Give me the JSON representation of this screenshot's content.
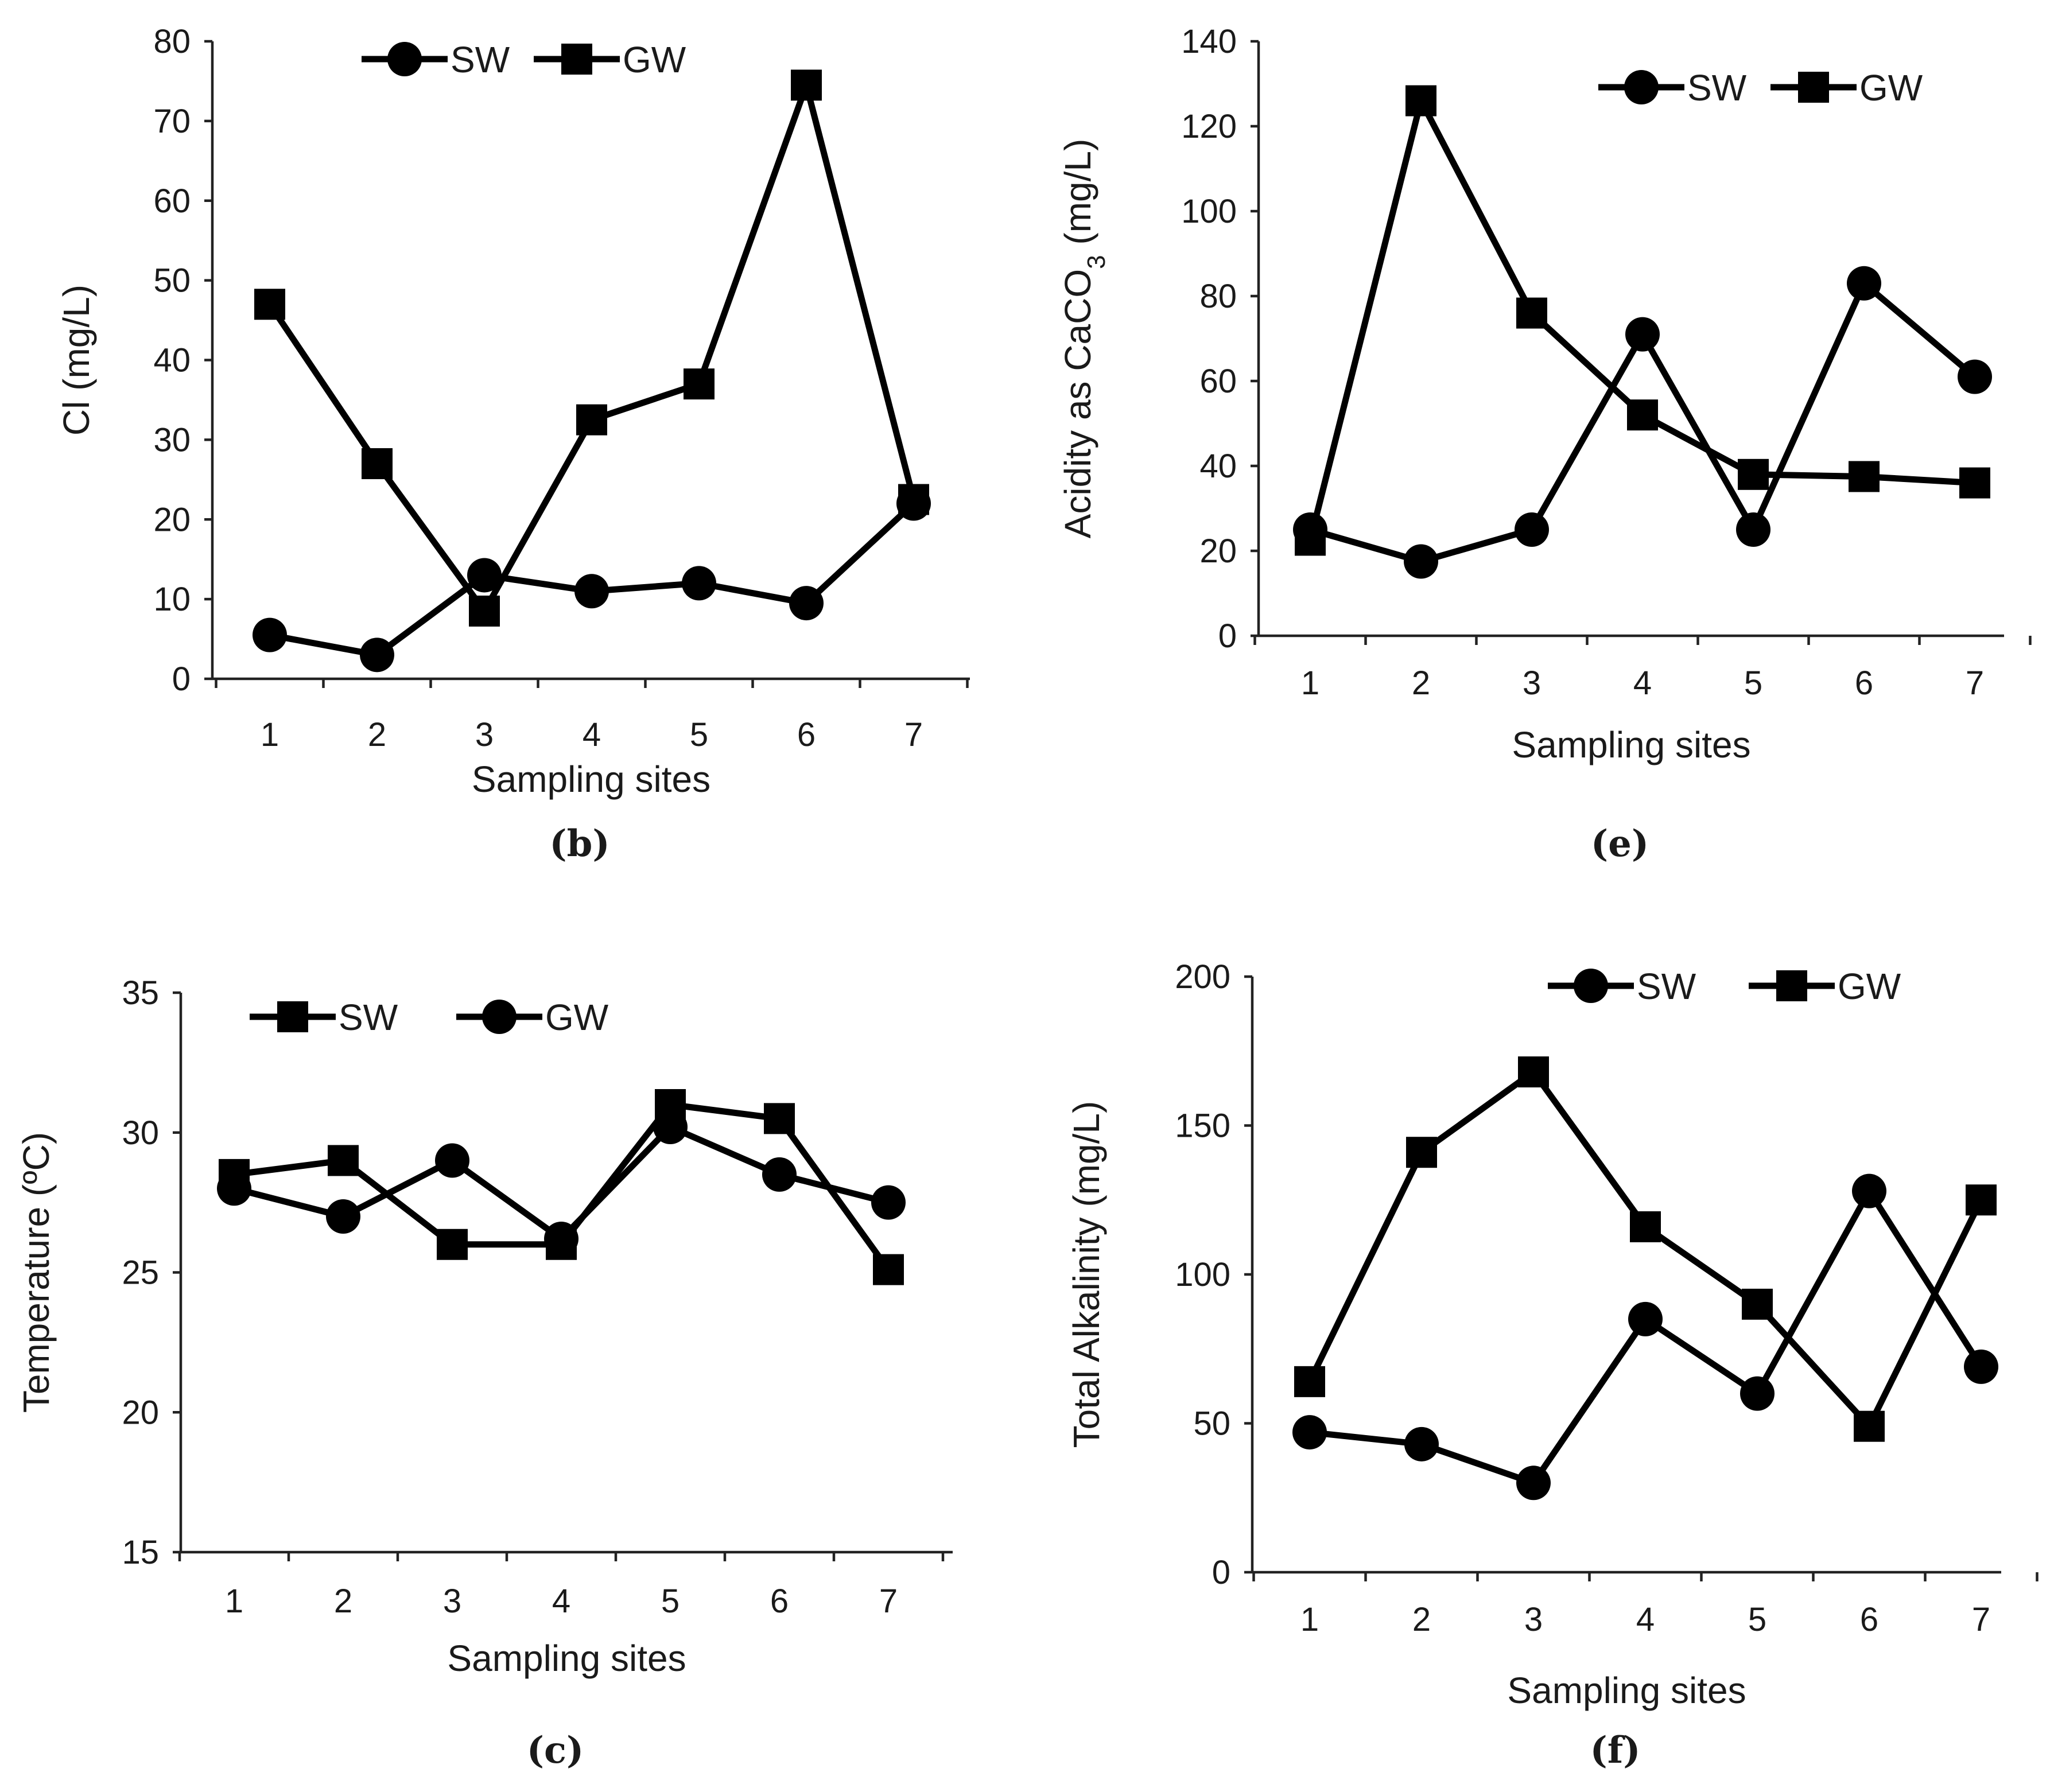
{
  "chart_data": [
    {
      "id": "b",
      "type": "line",
      "panel_label": "(b)",
      "title": "",
      "ylabel_parts": [
        {
          "text": "Cl (mg/L)"
        }
      ],
      "xlabel": "Sampling sites",
      "x": [
        "1",
        "2",
        "3",
        "4",
        "5",
        "6",
        "7"
      ],
      "ylim": [
        0,
        80
      ],
      "yticks": [
        0,
        10,
        20,
        30,
        40,
        50,
        60,
        70,
        80
      ],
      "legend": "top-center",
      "series": [
        {
          "name": "SW",
          "marker": "circle",
          "values": [
            5.5,
            3,
            13,
            11,
            12,
            9.5,
            22
          ]
        },
        {
          "name": "GW",
          "marker": "square",
          "values": [
            47,
            27,
            8.5,
            32.5,
            37,
            74.5,
            22.5
          ]
        }
      ]
    },
    {
      "id": "e",
      "type": "line",
      "panel_label": "(e)",
      "title": "",
      "ylabel_parts": [
        {
          "text": "Acidity as CaCO"
        },
        {
          "text": "3",
          "sub": true
        },
        {
          "text": " (mg/L)"
        }
      ],
      "xlabel": "Sampling sites",
      "x": [
        "1",
        "2",
        "3",
        "4",
        "5",
        "6",
        "7"
      ],
      "ylim": [
        0,
        140
      ],
      "yticks": [
        0,
        20,
        40,
        60,
        80,
        100,
        120,
        140
      ],
      "legend": "top-right",
      "series": [
        {
          "name": "SW",
          "marker": "circle",
          "values": [
            25,
            17.5,
            25,
            71,
            25,
            83,
            61
          ]
        },
        {
          "name": "GW",
          "marker": "square",
          "values": [
            22.5,
            126,
            76,
            52,
            38,
            37.5,
            36
          ]
        }
      ]
    },
    {
      "id": "c",
      "type": "line",
      "panel_label": "(c)",
      "title": "",
      "ylabel_parts": [
        {
          "text": "Temperature (ºC)"
        }
      ],
      "xlabel": "Sampling sites",
      "x": [
        "1",
        "2",
        "3",
        "4",
        "5",
        "6",
        "7"
      ],
      "ylim": [
        15,
        35
      ],
      "yticks": [
        15,
        20,
        25,
        30,
        35
      ],
      "legend": "top-left",
      "series": [
        {
          "name": "SW",
          "marker": "square",
          "values": [
            28.5,
            29,
            26,
            26,
            31,
            30.5,
            25.1
          ]
        },
        {
          "name": "GW",
          "marker": "circle",
          "values": [
            28,
            27,
            29,
            26.2,
            30.2,
            28.5,
            27.5
          ]
        }
      ]
    },
    {
      "id": "f",
      "type": "line",
      "panel_label": "(f)",
      "title": "",
      "ylabel_parts": [
        {
          "text": "Total Alkalinity (mg/L)"
        }
      ],
      "xlabel": "Sampling sites",
      "x": [
        "1",
        "2",
        "3",
        "4",
        "5",
        "6",
        "7"
      ],
      "ylim": [
        0,
        200
      ],
      "yticks": [
        0,
        50,
        100,
        150,
        200
      ],
      "legend": "top-center",
      "series": [
        {
          "name": "SW",
          "marker": "circle",
          "values": [
            47,
            43,
            30,
            85,
            60,
            128,
            69
          ]
        },
        {
          "name": "GW",
          "marker": "square",
          "values": [
            64,
            141,
            168,
            116,
            90,
            49,
            125
          ]
        }
      ]
    }
  ]
}
